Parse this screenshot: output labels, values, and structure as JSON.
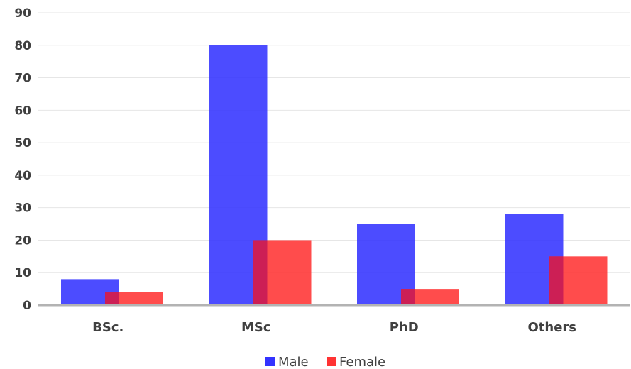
{
  "chart_data": {
    "type": "bar",
    "categories": [
      "BSc.",
      "MSc",
      "PhD",
      "Others"
    ],
    "series": [
      {
        "name": "Male",
        "values": [
          8,
          80,
          25,
          28
        ],
        "color": "#3333ff"
      },
      {
        "name": "Female",
        "values": [
          4,
          20,
          5,
          15
        ],
        "color": "#ff3333"
      }
    ],
    "ylim": [
      0,
      90
    ],
    "yticks": [
      0,
      10,
      20,
      30,
      40,
      50,
      60,
      70,
      80,
      90
    ],
    "grid": true,
    "legend_position": "bottom-center",
    "overlap_color": "#cc1f55",
    "title": "",
    "xlabel": "",
    "ylabel": ""
  }
}
